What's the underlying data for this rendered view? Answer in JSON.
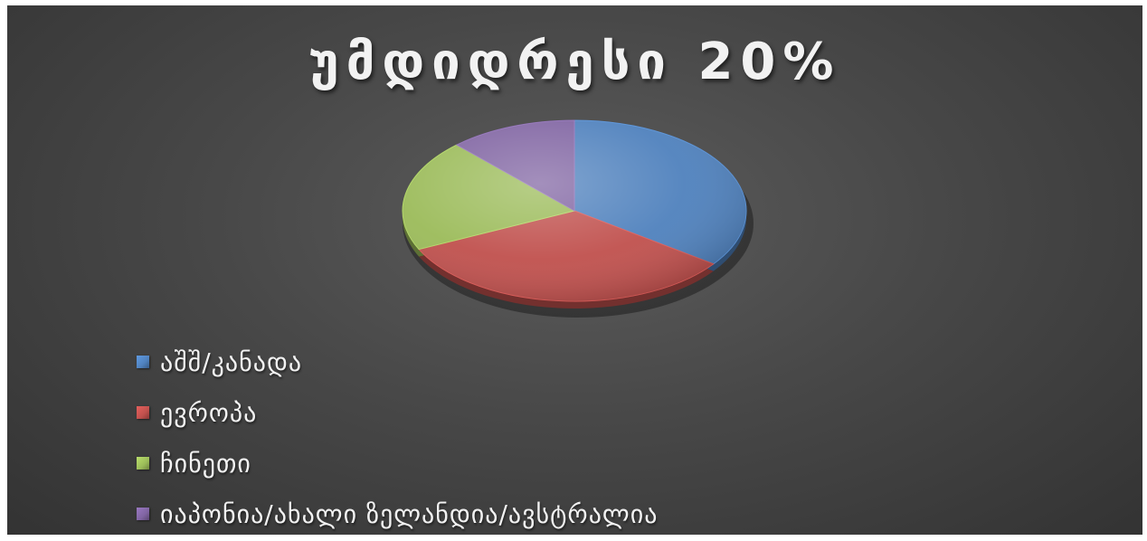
{
  "chart_data": {
    "type": "pie",
    "title": "უმდიდრესი 20%",
    "categories": [
      "აშშ/კანადა",
      "ევროპა",
      "ჩინეთი",
      "იაპონია/ახალი ზელანდია/ავსტრალია"
    ],
    "values": [
      35,
      33,
      20,
      12
    ],
    "colors": [
      "#4f81bd",
      "#c0504d",
      "#9bbb59",
      "#8064a2"
    ],
    "legend": "bottom-left"
  }
}
